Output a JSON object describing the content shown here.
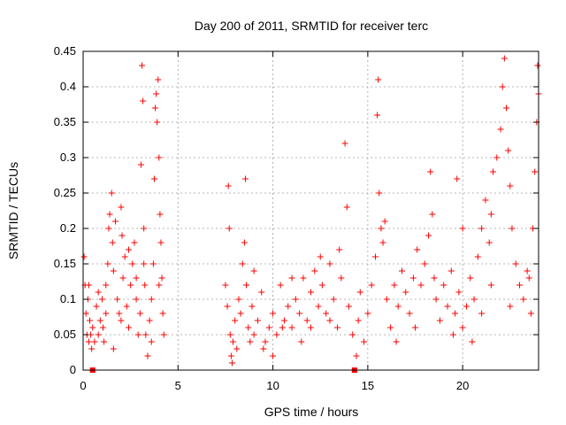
{
  "chart_data": {
    "type": "scatter",
    "title": "Day 200 of 2011, SRMTID for receiver terc",
    "xlabel": "GPS time / hours",
    "ylabel": "SRMTID / TECUs",
    "xlim": [
      0,
      24
    ],
    "ylim": [
      0,
      0.45
    ],
    "xticks": [
      "0",
      "5",
      "10",
      "15",
      "20"
    ],
    "xtick_values": [
      0,
      5,
      10,
      15,
      20
    ],
    "yticks": [
      "0",
      "0.05",
      "0.1",
      "0.15",
      "0.2",
      "0.25",
      "0.3",
      "0.35",
      "0.4",
      "0.45"
    ],
    "ytick_values": [
      0,
      0.05,
      0.1,
      0.15,
      0.2,
      0.25,
      0.3,
      0.35,
      0.4,
      0.45
    ],
    "grid": true,
    "marker": "plus",
    "color": "#ff0000",
    "series": [
      {
        "name": "SRMTID",
        "points": [
          [
            0.05,
            0.16
          ],
          [
            0.1,
            0.12
          ],
          [
            0.15,
            0.08
          ],
          [
            0.2,
            0.05
          ],
          [
            0.25,
            0.1
          ],
          [
            0.3,
            0.04
          ],
          [
            0.35,
            0.07
          ],
          [
            0.4,
            0.05
          ],
          [
            0.45,
            0.03
          ],
          [
            0.5,
            0.06
          ],
          [
            0.6,
            0.04
          ],
          [
            0.7,
            0.09
          ],
          [
            0.8,
            0.05
          ],
          [
            0.9,
            0.07
          ],
          [
            1.0,
            0.1
          ],
          [
            1.05,
            0.06
          ],
          [
            1.1,
            0.04
          ],
          [
            1.2,
            0.12
          ],
          [
            1.3,
            0.15
          ],
          [
            1.35,
            0.2
          ],
          [
            1.4,
            0.22
          ],
          [
            1.5,
            0.25
          ],
          [
            1.55,
            0.18
          ],
          [
            1.6,
            0.14
          ],
          [
            1.7,
            0.21
          ],
          [
            1.8,
            0.1
          ],
          [
            1.9,
            0.08
          ],
          [
            2.0,
            0.23
          ],
          [
            2.05,
            0.19
          ],
          [
            2.1,
            0.13
          ],
          [
            2.2,
            0.16
          ],
          [
            2.3,
            0.09
          ],
          [
            2.4,
            0.06
          ],
          [
            2.5,
            0.12
          ],
          [
            2.6,
            0.15
          ],
          [
            2.7,
            0.18
          ],
          [
            2.8,
            0.1
          ],
          [
            2.9,
            0.05
          ],
          [
            3.0,
            0.08
          ],
          [
            3.05,
            0.29
          ],
          [
            3.1,
            0.43
          ],
          [
            3.15,
            0.38
          ],
          [
            3.2,
            0.2
          ],
          [
            3.25,
            0.12
          ],
          [
            3.3,
            0.05
          ],
          [
            3.4,
            0.02
          ],
          [
            3.5,
            0.07
          ],
          [
            3.6,
            0.1
          ],
          [
            3.7,
            0.15
          ],
          [
            3.75,
            0.27
          ],
          [
            3.8,
            0.37
          ],
          [
            3.85,
            0.39
          ],
          [
            3.9,
            0.35
          ],
          [
            3.95,
            0.41
          ],
          [
            4.0,
            0.3
          ],
          [
            4.05,
            0.22
          ],
          [
            4.1,
            0.18
          ],
          [
            4.15,
            0.13
          ],
          [
            4.2,
            0.08
          ],
          [
            4.25,
            0.05
          ],
          [
            1.2,
            0.08
          ],
          [
            1.6,
            0.03
          ],
          [
            2.0,
            0.07
          ],
          [
            2.4,
            0.17
          ],
          [
            2.8,
            0.13
          ],
          [
            3.2,
            0.15
          ],
          [
            3.6,
            0.04
          ],
          [
            4.0,
            0.12
          ],
          [
            0.3,
            0.12
          ],
          [
            0.8,
            0.11
          ],
          [
            7.5,
            0.12
          ],
          [
            7.6,
            0.09
          ],
          [
            7.65,
            0.26
          ],
          [
            7.7,
            0.2
          ],
          [
            7.75,
            0.05
          ],
          [
            7.8,
            0.02
          ],
          [
            7.85,
            0.01
          ],
          [
            7.9,
            0.04
          ],
          [
            8.0,
            0.07
          ],
          [
            8.1,
            0.03
          ],
          [
            8.2,
            0.1
          ],
          [
            8.3,
            0.08
          ],
          [
            8.4,
            0.15
          ],
          [
            8.5,
            0.18
          ],
          [
            8.55,
            0.27
          ],
          [
            8.6,
            0.12
          ],
          [
            8.7,
            0.06
          ],
          [
            8.8,
            0.04
          ],
          [
            8.9,
            0.09
          ],
          [
            9.0,
            0.05
          ],
          [
            9.2,
            0.07
          ],
          [
            9.4,
            0.11
          ],
          [
            9.6,
            0.04
          ],
          [
            9.8,
            0.06
          ],
          [
            10.0,
            0.08
          ],
          [
            10.2,
            0.05
          ],
          [
            10.4,
            0.12
          ],
          [
            10.6,
            0.07
          ],
          [
            10.8,
            0.09
          ],
          [
            11.0,
            0.06
          ],
          [
            11.2,
            0.1
          ],
          [
            11.4,
            0.08
          ],
          [
            11.6,
            0.13
          ],
          [
            11.8,
            0.07
          ],
          [
            12.0,
            0.11
          ],
          [
            12.2,
            0.14
          ],
          [
            12.4,
            0.09
          ],
          [
            12.6,
            0.12
          ],
          [
            12.8,
            0.08
          ],
          [
            13.0,
            0.15
          ],
          [
            13.2,
            0.1
          ],
          [
            13.4,
            0.06
          ],
          [
            13.6,
            0.13
          ],
          [
            13.8,
            0.32
          ],
          [
            13.9,
            0.23
          ],
          [
            14.0,
            0.09
          ],
          [
            14.2,
            0.05
          ],
          [
            14.4,
            0.02
          ],
          [
            14.5,
            0.07
          ],
          [
            14.6,
            0.11
          ],
          [
            9.0,
            0.14
          ],
          [
            9.5,
            0.03
          ],
          [
            10.0,
            0.02
          ],
          [
            10.5,
            0.06
          ],
          [
            11.0,
            0.13
          ],
          [
            11.5,
            0.04
          ],
          [
            12.0,
            0.06
          ],
          [
            12.5,
            0.16
          ],
          [
            13.0,
            0.07
          ],
          [
            13.5,
            0.17
          ],
          [
            14.8,
            0.04
          ],
          [
            15.0,
            0.08
          ],
          [
            15.2,
            0.12
          ],
          [
            15.4,
            0.16
          ],
          [
            15.5,
            0.36
          ],
          [
            15.55,
            0.41
          ],
          [
            15.6,
            0.25
          ],
          [
            15.7,
            0.2
          ],
          [
            15.8,
            0.18
          ],
          [
            15.9,
            0.21
          ],
          [
            16.0,
            0.1
          ],
          [
            16.2,
            0.06
          ],
          [
            16.4,
            0.12
          ],
          [
            16.6,
            0.09
          ],
          [
            16.8,
            0.14
          ],
          [
            17.0,
            0.11
          ],
          [
            17.2,
            0.08
          ],
          [
            17.4,
            0.13
          ],
          [
            17.6,
            0.17
          ],
          [
            17.8,
            0.12
          ],
          [
            18.0,
            0.15
          ],
          [
            18.2,
            0.19
          ],
          [
            18.3,
            0.28
          ],
          [
            18.4,
            0.22
          ],
          [
            18.6,
            0.1
          ],
          [
            18.8,
            0.07
          ],
          [
            19.0,
            0.12
          ],
          [
            19.2,
            0.09
          ],
          [
            19.4,
            0.14
          ],
          [
            19.6,
            0.08
          ],
          [
            19.7,
            0.27
          ],
          [
            19.8,
            0.11
          ],
          [
            20.0,
            0.06
          ],
          [
            20.2,
            0.09
          ],
          [
            20.4,
            0.13
          ],
          [
            20.6,
            0.1
          ],
          [
            20.8,
            0.16
          ],
          [
            21.0,
            0.2
          ],
          [
            21.2,
            0.24
          ],
          [
            21.4,
            0.18
          ],
          [
            21.5,
            0.22
          ],
          [
            21.6,
            0.28
          ],
          [
            21.8,
            0.3
          ],
          [
            22.0,
            0.34
          ],
          [
            22.1,
            0.4
          ],
          [
            22.2,
            0.44
          ],
          [
            22.3,
            0.37
          ],
          [
            22.4,
            0.31
          ],
          [
            22.5,
            0.26
          ],
          [
            22.6,
            0.2
          ],
          [
            22.8,
            0.15
          ],
          [
            23.0,
            0.12
          ],
          [
            23.2,
            0.1
          ],
          [
            23.4,
            0.14
          ],
          [
            23.6,
            0.08
          ],
          [
            23.7,
            0.2
          ],
          [
            23.8,
            0.28
          ],
          [
            23.9,
            0.35
          ],
          [
            23.95,
            0.43
          ],
          [
            24.0,
            0.39
          ],
          [
            16.5,
            0.04
          ],
          [
            17.5,
            0.06
          ],
          [
            18.5,
            0.13
          ],
          [
            19.5,
            0.05
          ],
          [
            20.5,
            0.04
          ],
          [
            21.5,
            0.12
          ],
          [
            22.5,
            0.09
          ],
          [
            23.5,
            0.13
          ],
          [
            20.0,
            0.2
          ],
          [
            21.0,
            0.08
          ]
        ]
      }
    ],
    "gap_markers_x": [
      0.5,
      14.3
    ]
  }
}
